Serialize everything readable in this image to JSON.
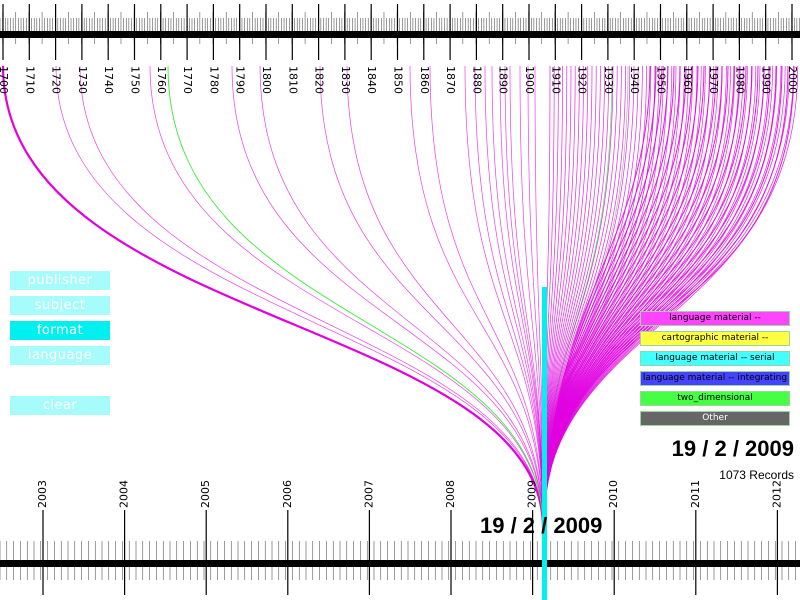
{
  "top_axis": {
    "labels": [
      "1700",
      "1710",
      "1720",
      "1730",
      "1740",
      "1750",
      "1760",
      "1770",
      "1780",
      "1790",
      "1800",
      "1810",
      "1820",
      "1830",
      "1840",
      "1850",
      "1860",
      "1870",
      "1880",
      "1890",
      "1900",
      "1910",
      "1920",
      "1930",
      "1940",
      "1950",
      "1960",
      "1970",
      "1980",
      "1990",
      "2000"
    ]
  },
  "bottom_axis": {
    "labels": [
      "2003",
      "2004",
      "2005",
      "2006",
      "2007",
      "2008",
      "2009",
      "2010",
      "2011",
      "2012"
    ]
  },
  "filters": [
    {
      "label": "publisher",
      "active": false
    },
    {
      "label": "subject",
      "active": false
    },
    {
      "label": "format",
      "active": true
    },
    {
      "label": "language",
      "active": false
    }
  ],
  "clear_label": "clear",
  "legend": [
    {
      "label": "language material --",
      "color": "#ff44ff",
      "text_color": "#000000"
    },
    {
      "label": "cartographic material --",
      "color": "#ffff44",
      "text_color": "#000000"
    },
    {
      "label": "language material -- serial",
      "color": "#44ffff",
      "text_color": "#000000"
    },
    {
      "label": "language material -- integrating",
      "color": "#4444ff",
      "text_color": "#000000"
    },
    {
      "label": "two_dimensional",
      "color": "#44ff44",
      "text_color": "#000000"
    },
    {
      "label": "Other",
      "color": "#666666",
      "text_color": "#ffffff"
    }
  ],
  "selected_date": "19 / 2 / 2009",
  "records_text": "1073 Records",
  "cursor_date": "19 / 2 / 2009",
  "colors": {
    "accent": "#00f0f0",
    "line_magenta": "#e000e0",
    "line_green": "#33ee33",
    "line_gray": "#999999"
  }
}
